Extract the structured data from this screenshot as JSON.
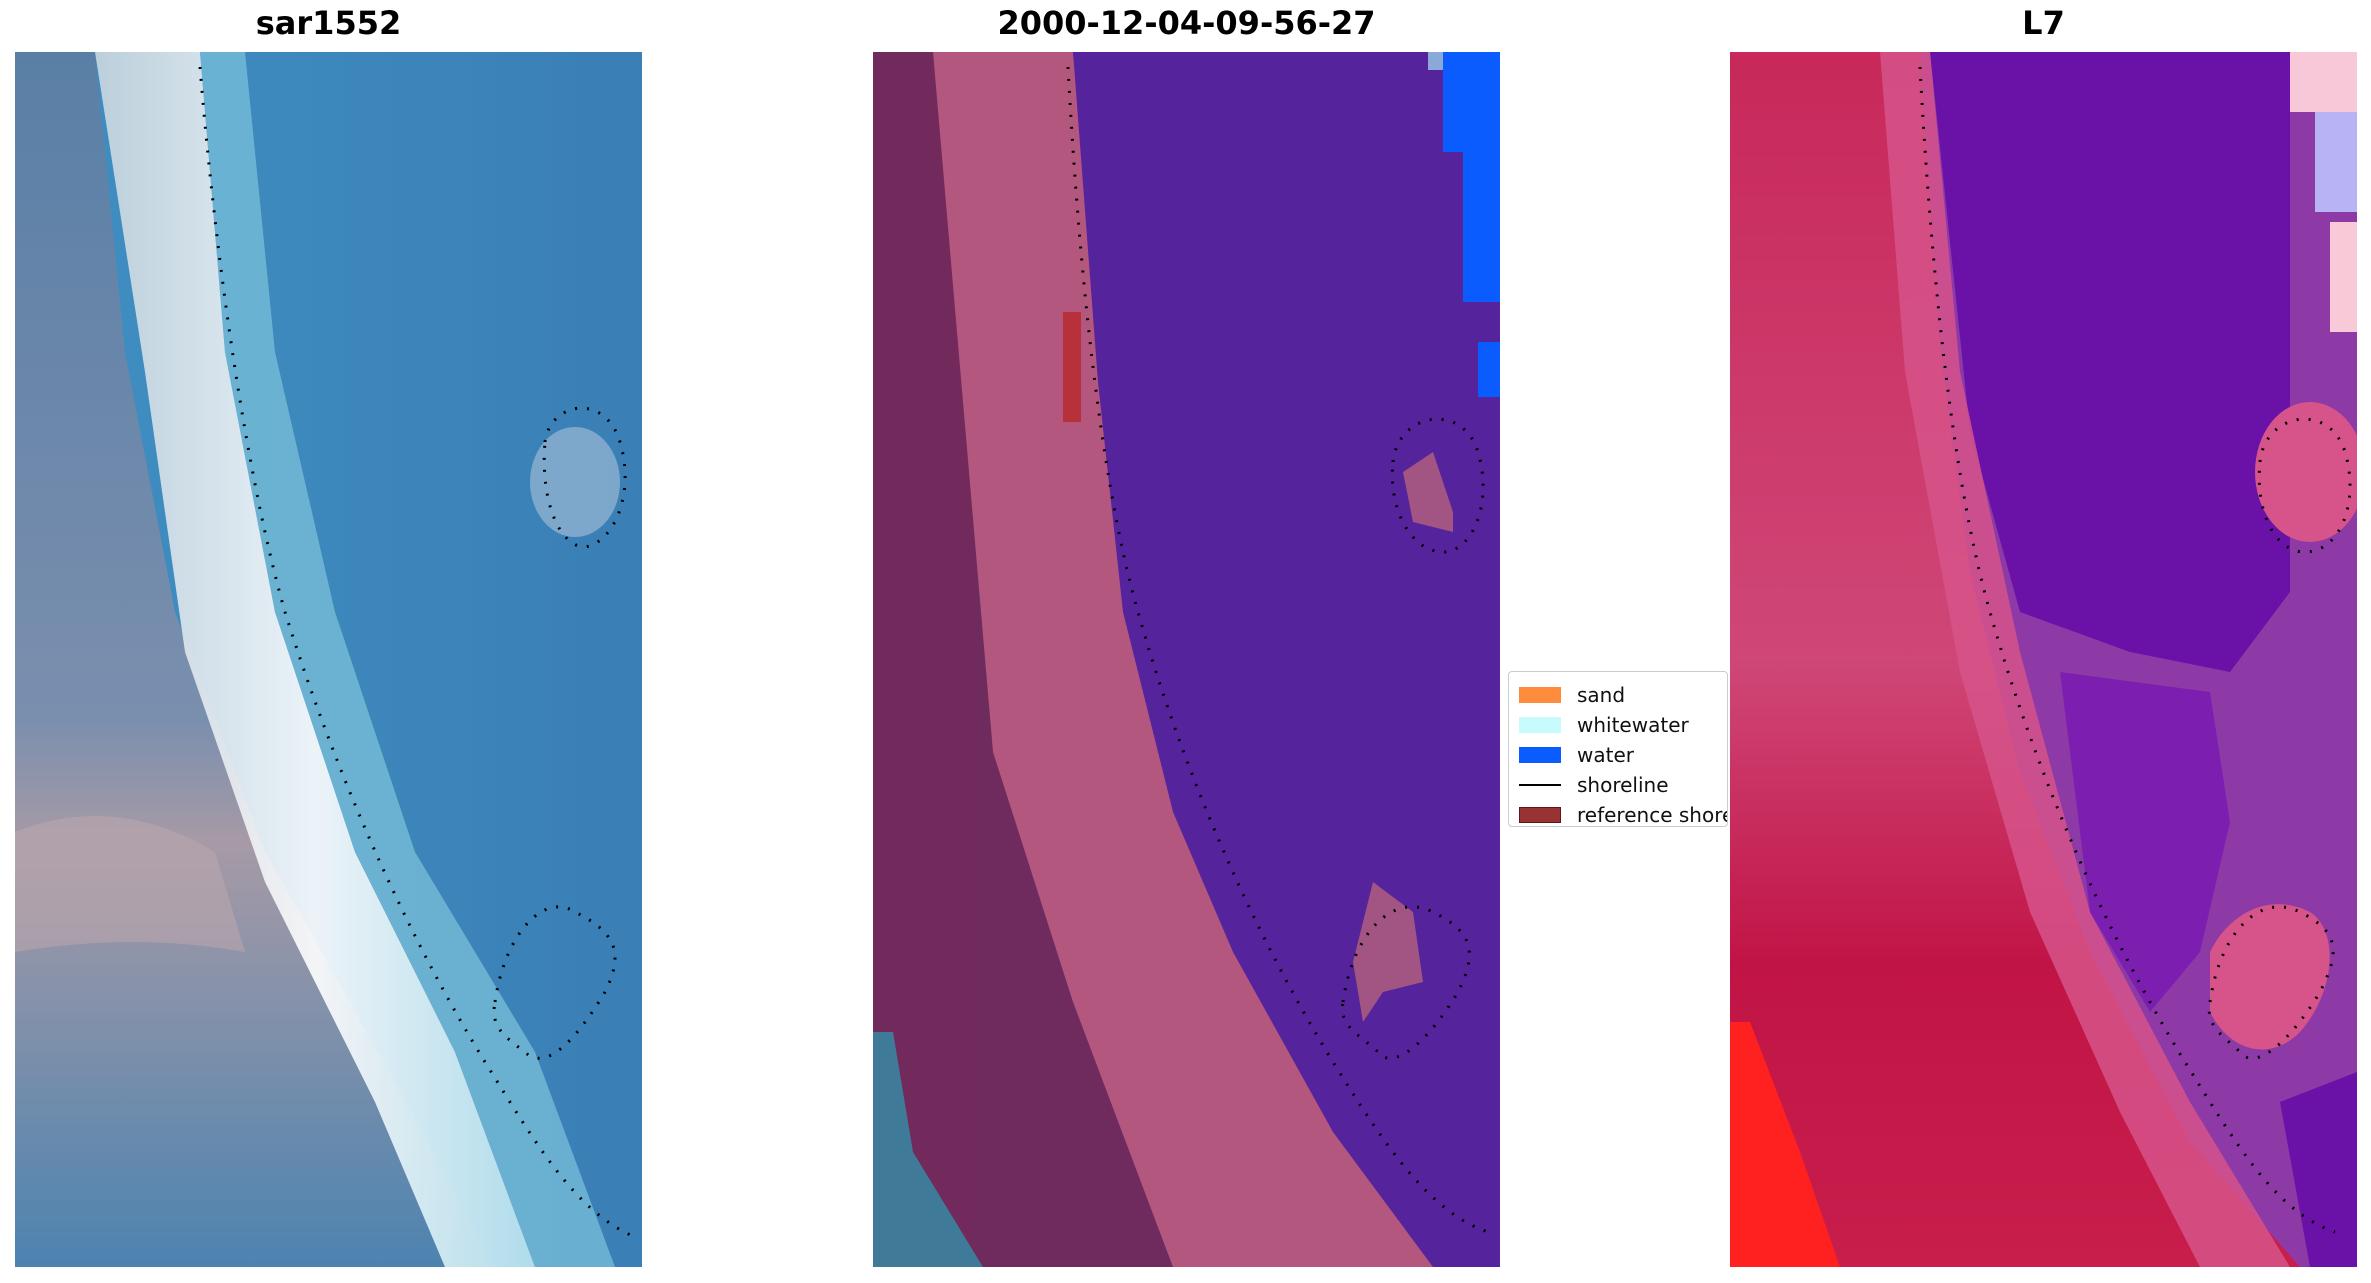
{
  "panels": [
    {
      "title": "sar1552"
    },
    {
      "title": "2000-12-04-09-56-27"
    },
    {
      "title": "L7"
    }
  ],
  "legend": {
    "items": [
      {
        "label": "sand",
        "kind": "patch",
        "color": "#ff8c3c"
      },
      {
        "label": "whitewater",
        "kind": "patch",
        "color": "#c8fcfc"
      },
      {
        "label": "water",
        "kind": "patch",
        "color": "#0a5cff"
      },
      {
        "label": "shoreline",
        "kind": "line",
        "color": "#000000"
      },
      {
        "label": "reference shoreline",
        "kind": "patch",
        "color": "#993333"
      }
    ]
  },
  "colors": {
    "rgb_water": "#3a8fc4",
    "rgb_land": "#7c96b4",
    "rgb_sand_white": "#f2f6f6",
    "class_water": "#55239c",
    "class_land": "#74295c",
    "class_beach": "#b6587e",
    "class_water_patch": "#0a5cff",
    "class_reference": "#b8303a",
    "ndwi_land": "#c81e50",
    "ndwi_water": "#6a12a8",
    "ndwi_mid": "#d6548a",
    "shoreline_dots": "#000000"
  }
}
